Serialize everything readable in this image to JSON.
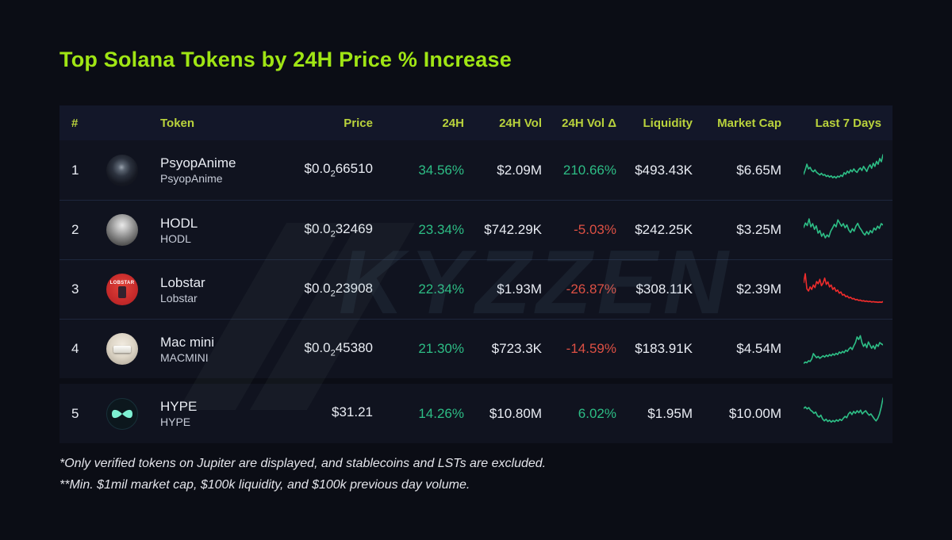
{
  "title": "Top Solana Tokens by 24H Price % Increase",
  "watermark": "KYZZEN",
  "footnotes": [
    "*Only verified tokens on Jupiter are displayed, and stablecoins and LSTs are excluded.",
    "**Min. $1mil market cap, $100k liquidity, and $100k previous day volume."
  ],
  "colors": {
    "accent": "#a0e514",
    "header_text": "#b9d23c",
    "positive": "#2dbd85",
    "negative": "#dd5044",
    "text": "#e9ecf3",
    "text_dim": "#c6cbd7",
    "page_bg": "#0b0d15",
    "row_bg": "#10131f",
    "header_bg": "#131729"
  },
  "table": {
    "headers": [
      "#",
      "Token",
      "Price",
      "24H",
      "24H Vol",
      "24H Vol Δ",
      "Liquidity",
      "Market Cap",
      "Last 7 Days"
    ],
    "rows": [
      {
        "rank": "1",
        "name": "PsyopAnime",
        "symbol": "PsyopAnime",
        "price": {
          "prefix": "$0.0",
          "sub": "2",
          "rest": "66510"
        },
        "change_24h": "34.56%",
        "change_24h_color": "#2dbd85",
        "vol_24h": "$2.09M",
        "vol_delta": "210.66%",
        "vol_delta_color": "#2dbd85",
        "liquidity": "$493.43K",
        "market_cap": "$6.65M"
      },
      {
        "rank": "2",
        "name": "HODL",
        "symbol": "HODL",
        "price": {
          "prefix": "$0.0",
          "sub": "2",
          "rest": "32469"
        },
        "change_24h": "23.34%",
        "change_24h_color": "#2dbd85",
        "vol_24h": "$742.29K",
        "vol_delta": "-5.03%",
        "vol_delta_color": "#dd5044",
        "liquidity": "$242.25K",
        "market_cap": "$3.25M"
      },
      {
        "rank": "3",
        "name": "Lobstar",
        "symbol": "Lobstar",
        "icon_text": "LOBSTAR",
        "price": {
          "prefix": "$0.0",
          "sub": "2",
          "rest": "23908"
        },
        "change_24h": "22.34%",
        "change_24h_color": "#2dbd85",
        "vol_24h": "$1.93M",
        "vol_delta": "-26.87%",
        "vol_delta_color": "#dd5044",
        "liquidity": "$308.11K",
        "market_cap": "$2.39M"
      },
      {
        "rank": "4",
        "name": "Mac mini",
        "symbol": "MACMINI",
        "price": {
          "prefix": "$0.0",
          "sub": "2",
          "rest": "45380"
        },
        "change_24h": "21.30%",
        "change_24h_color": "#2dbd85",
        "vol_24h": "$723.3K",
        "vol_delta": "-14.59%",
        "vol_delta_color": "#dd5044",
        "liquidity": "$183.91K",
        "market_cap": "$4.54M"
      },
      {
        "rank": "5",
        "name": "HYPE",
        "symbol": "HYPE",
        "price": {
          "prefix": "$31.21",
          "sub": "",
          "rest": ""
        },
        "change_24h": "14.26%",
        "change_24h_color": "#2dbd85",
        "vol_24h": "$10.80M",
        "vol_delta": "6.02%",
        "vol_delta_color": "#2dbd85",
        "liquidity": "$1.95M",
        "market_cap": "$10.00M"
      }
    ]
  },
  "chart_data": {
    "type": "table",
    "title": "Top Solana Tokens by 24H Price % Increase",
    "columns": [
      "#",
      "Token",
      "Price",
      "24H",
      "24H Vol",
      "24H Vol Δ",
      "Liquidity",
      "Market Cap",
      "Last 7 Days"
    ],
    "rows": [
      [
        "1",
        "PsyopAnime (PsyopAnime)",
        "$0.0₂66510",
        "34.56%",
        "$2.09M",
        "210.66%",
        "$493.43K",
        "$6.65M",
        "green sparkline, up"
      ],
      [
        "2",
        "HODL (HODL)",
        "$0.0₂32469",
        "23.34%",
        "$742.29K",
        "-5.03%",
        "$242.25K",
        "$3.25M",
        "green sparkline, volatile"
      ],
      [
        "3",
        "Lobstar (Lobstar)",
        "$0.0₂23908",
        "22.34%",
        "$1.93M",
        "-26.87%",
        "$308.11K",
        "$2.39M",
        "red sparkline, down"
      ],
      [
        "4",
        "Mac mini (MACMINI)",
        "$0.0₂45380",
        "21.30%",
        "$723.3K",
        "-14.59%",
        "$183.91K",
        "$4.54M",
        "green sparkline, up"
      ],
      [
        "5",
        "HYPE (HYPE)",
        "$31.21",
        "14.26%",
        "$10.80M",
        "6.02%",
        "$1.95M",
        "$10.00M",
        "green sparkline, recovering"
      ]
    ],
    "sparklines": [
      {
        "token": "PsyopAnime",
        "color": "#2dbd85",
        "trend": "up",
        "values": [
          38,
          52,
          70,
          55,
          60,
          50,
          46,
          52,
          44,
          40,
          36,
          41,
          35,
          37,
          31,
          34,
          29,
          33,
          27,
          31,
          26,
          32,
          29,
          35,
          31,
          43,
          38,
          48,
          42,
          52,
          46,
          55,
          48,
          44,
          53,
          58,
          50,
          63,
          55,
          47,
          60,
          68,
          57,
          73,
          63,
          79,
          70,
          88,
          78,
          100
        ]
      },
      {
        "token": "HODL",
        "color": "#2dbd85",
        "trend": "volatile",
        "values": [
          58,
          72,
          64,
          85,
          60,
          70,
          52,
          63,
          40,
          48,
          30,
          39,
          25,
          34,
          28,
          46,
          56,
          68,
          60,
          82,
          72,
          62,
          70,
          57,
          66,
          50,
          42,
          54,
          46,
          62,
          71,
          58,
          50,
          40,
          34,
          45,
          36,
          48,
          41,
          56,
          50,
          62,
          55,
          70,
          66
        ]
      },
      {
        "token": "Lobstar",
        "color": "#ee2c2c",
        "trend": "down",
        "values": [
          72,
          100,
          52,
          45,
          58,
          50,
          64,
          56,
          75,
          68,
          82,
          62,
          70,
          86,
          66,
          74,
          58,
          64,
          50,
          56,
          44,
          48,
          38,
          42,
          32,
          34,
          27,
          29,
          23,
          25,
          20,
          21,
          17,
          18,
          15,
          16,
          13,
          14,
          12,
          13,
          11,
          12,
          10,
          11,
          10,
          10,
          9,
          10,
          9,
          11
        ]
      },
      {
        "token": "Mac mini",
        "color": "#2dbd85",
        "trend": "up",
        "values": [
          4,
          8,
          6,
          12,
          10,
          18,
          35,
          28,
          22,
          26,
          20,
          24,
          28,
          24,
          30,
          26,
          32,
          28,
          34,
          30,
          36,
          32,
          40,
          36,
          42,
          38,
          46,
          42,
          50,
          55,
          48,
          60,
          70,
          88,
          80,
          92,
          70,
          58,
          66,
          54,
          72,
          62,
          52,
          60,
          50,
          64,
          58,
          70,
          66,
          63
        ]
      },
      {
        "token": "HYPE",
        "color": "#2dbd85",
        "trend": "recovering",
        "values": [
          68,
          72,
          66,
          70,
          62,
          58,
          52,
          56,
          44,
          40,
          46,
          34,
          28,
          33,
          26,
          30,
          24,
          29,
          25,
          31,
          27,
          33,
          29,
          36,
          42,
          38,
          50,
          56,
          48,
          58,
          52,
          60,
          54,
          62,
          50,
          56,
          60,
          52,
          46,
          50,
          42,
          34,
          28,
          36,
          50,
          72,
          100
        ]
      }
    ]
  }
}
